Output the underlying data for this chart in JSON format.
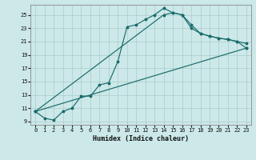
{
  "xlabel": "Humidex (Indice chaleur)",
  "bg_color": "#cce8e8",
  "line_color": "#1a6b6b",
  "grid_color": "#aacccc",
  "xlim": [
    -0.5,
    23.5
  ],
  "ylim": [
    8.5,
    26.5
  ],
  "xticks": [
    0,
    1,
    2,
    3,
    4,
    5,
    6,
    7,
    8,
    9,
    10,
    11,
    12,
    13,
    14,
    15,
    16,
    17,
    18,
    19,
    20,
    21,
    22,
    23
  ],
  "yticks": [
    9,
    11,
    13,
    15,
    17,
    19,
    21,
    23,
    25
  ],
  "series1_x": [
    0,
    1,
    2,
    3,
    4,
    5,
    6,
    7,
    8,
    9,
    10,
    11,
    12,
    13,
    14,
    15,
    16,
    17,
    18,
    19,
    20,
    21,
    22,
    23
  ],
  "series1_y": [
    10.5,
    9.5,
    9.2,
    10.5,
    11.0,
    12.8,
    12.8,
    14.5,
    14.8,
    18.0,
    23.2,
    23.5,
    24.3,
    25.0,
    26.0,
    25.3,
    25.0,
    23.0,
    22.2,
    21.8,
    21.5,
    21.3,
    21.0,
    20.7
  ],
  "series2_x": [
    0,
    14,
    15,
    16,
    17,
    18,
    19,
    20,
    21,
    22,
    23
  ],
  "series2_y": [
    10.5,
    25.0,
    25.3,
    25.0,
    23.5,
    22.2,
    21.8,
    21.5,
    21.3,
    21.0,
    20.0
  ],
  "series3_x": [
    0,
    23
  ],
  "series3_y": [
    10.5,
    20.0
  ]
}
